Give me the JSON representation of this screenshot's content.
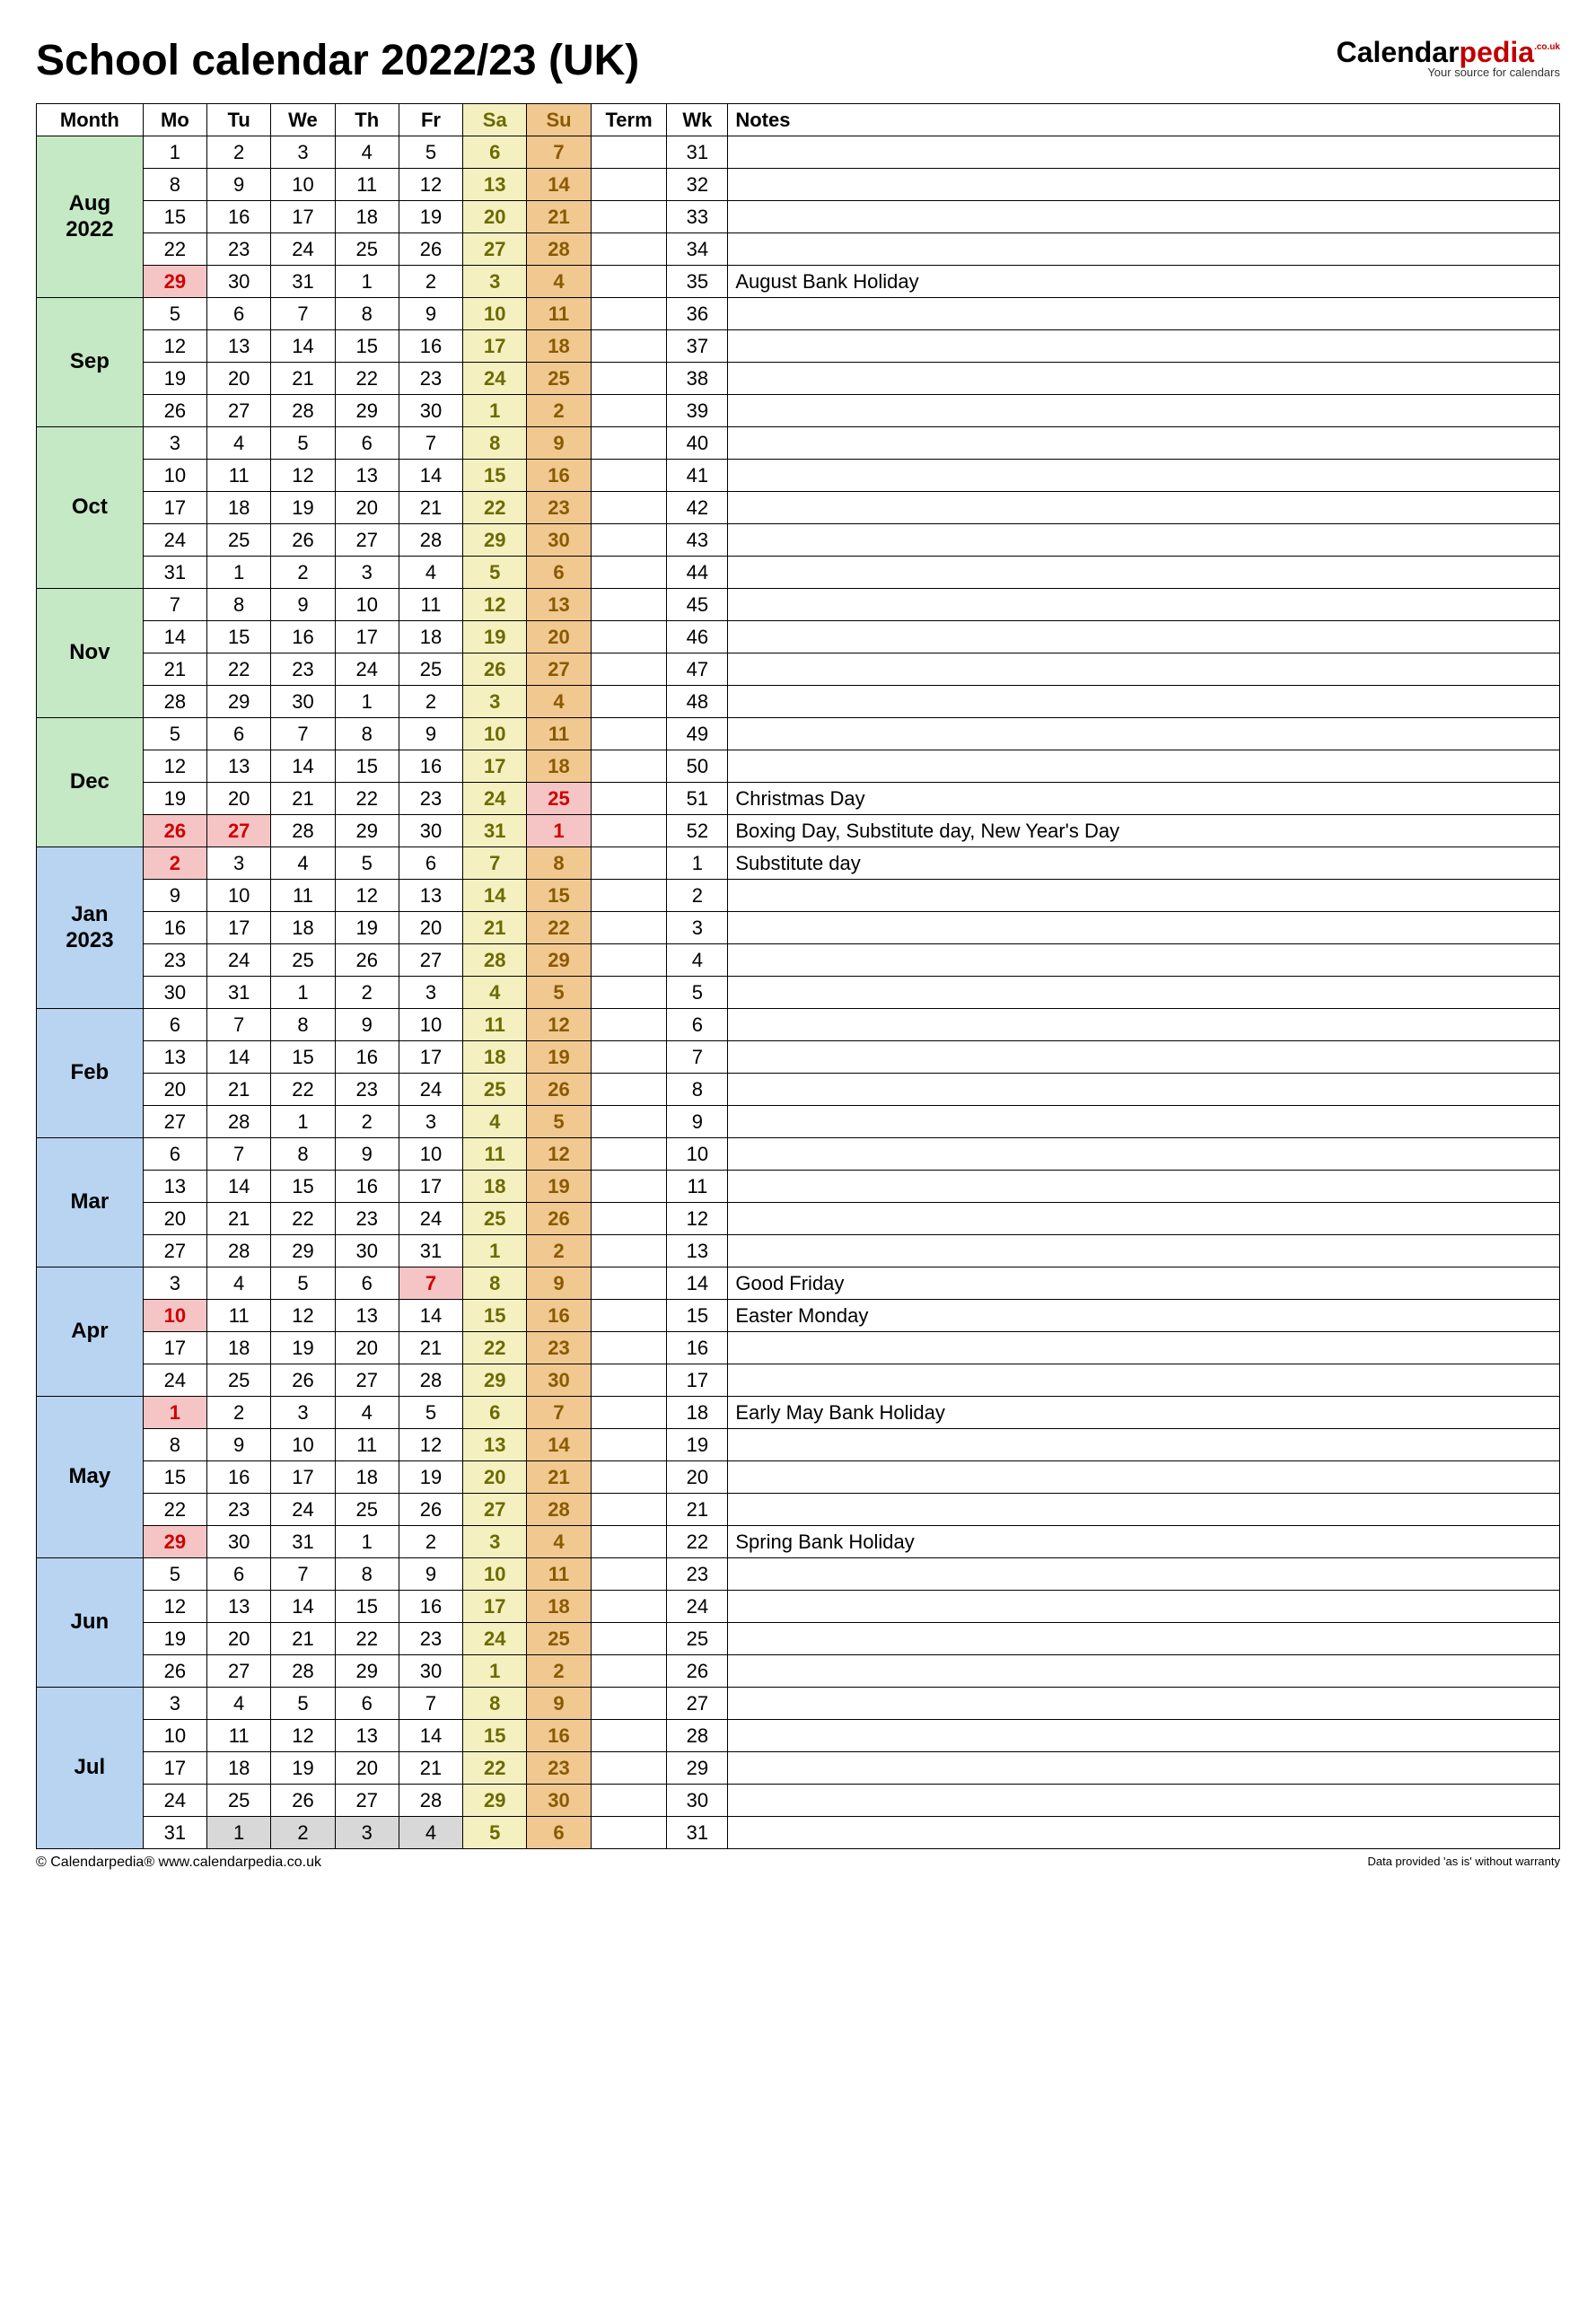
{
  "title": "School calendar 2022/23 (UK)",
  "logo": {
    "brand_a": "Calendar",
    "brand_b": "pedia",
    "suffix": ".co.uk",
    "tagline": "Your source for calendars"
  },
  "footer": {
    "left": "© Calendarpedia®    www.calendarpedia.co.uk",
    "right": "Data provided 'as is' without warranty"
  },
  "colors": {
    "month_green": "#c5e8c5",
    "month_blue": "#b8d4f0",
    "sat_bg": "#f5f0c0",
    "sun_bg": "#f0c890",
    "holiday_bg": "#f5c5c5",
    "holiday_text": "#d00000",
    "grey_bg": "#d8d8d8",
    "sat_text": "#6b6b00",
    "sun_text": "#8a5a00"
  },
  "headers": [
    "Month",
    "Mo",
    "Tu",
    "We",
    "Th",
    "Fr",
    "Sa",
    "Su",
    "Term",
    "Wk",
    "Notes"
  ],
  "months": [
    {
      "label": "Aug\n2022",
      "color": "month_green",
      "rows": [
        {
          "days": [
            1,
            2,
            3,
            4,
            5,
            6,
            7
          ],
          "wk": 31,
          "note": ""
        },
        {
          "days": [
            8,
            9,
            10,
            11,
            12,
            13,
            14
          ],
          "wk": 32,
          "note": ""
        },
        {
          "days": [
            15,
            16,
            17,
            18,
            19,
            20,
            21
          ],
          "wk": 33,
          "note": ""
        },
        {
          "days": [
            22,
            23,
            24,
            25,
            26,
            27,
            28
          ],
          "wk": 34,
          "note": ""
        },
        {
          "days": [
            29,
            30,
            31,
            1,
            2,
            3,
            4
          ],
          "wk": 35,
          "note": "August Bank Holiday",
          "hol": [
            0
          ]
        }
      ]
    },
    {
      "label": "Sep",
      "color": "month_green",
      "rows": [
        {
          "days": [
            5,
            6,
            7,
            8,
            9,
            10,
            11
          ],
          "wk": 36,
          "note": ""
        },
        {
          "days": [
            12,
            13,
            14,
            15,
            16,
            17,
            18
          ],
          "wk": 37,
          "note": ""
        },
        {
          "days": [
            19,
            20,
            21,
            22,
            23,
            24,
            25
          ],
          "wk": 38,
          "note": ""
        },
        {
          "days": [
            26,
            27,
            28,
            29,
            30,
            1,
            2
          ],
          "wk": 39,
          "note": ""
        }
      ]
    },
    {
      "label": "Oct",
      "color": "month_green",
      "rows": [
        {
          "days": [
            3,
            4,
            5,
            6,
            7,
            8,
            9
          ],
          "wk": 40,
          "note": ""
        },
        {
          "days": [
            10,
            11,
            12,
            13,
            14,
            15,
            16
          ],
          "wk": 41,
          "note": ""
        },
        {
          "days": [
            17,
            18,
            19,
            20,
            21,
            22,
            23
          ],
          "wk": 42,
          "note": ""
        },
        {
          "days": [
            24,
            25,
            26,
            27,
            28,
            29,
            30
          ],
          "wk": 43,
          "note": ""
        },
        {
          "days": [
            31,
            1,
            2,
            3,
            4,
            5,
            6
          ],
          "wk": 44,
          "note": ""
        }
      ]
    },
    {
      "label": "Nov",
      "color": "month_green",
      "rows": [
        {
          "days": [
            7,
            8,
            9,
            10,
            11,
            12,
            13
          ],
          "wk": 45,
          "note": ""
        },
        {
          "days": [
            14,
            15,
            16,
            17,
            18,
            19,
            20
          ],
          "wk": 46,
          "note": ""
        },
        {
          "days": [
            21,
            22,
            23,
            24,
            25,
            26,
            27
          ],
          "wk": 47,
          "note": ""
        },
        {
          "days": [
            28,
            29,
            30,
            1,
            2,
            3,
            4
          ],
          "wk": 48,
          "note": ""
        }
      ]
    },
    {
      "label": "Dec",
      "color": "month_green",
      "rows": [
        {
          "days": [
            5,
            6,
            7,
            8,
            9,
            10,
            11
          ],
          "wk": 49,
          "note": ""
        },
        {
          "days": [
            12,
            13,
            14,
            15,
            16,
            17,
            18
          ],
          "wk": 50,
          "note": ""
        },
        {
          "days": [
            19,
            20,
            21,
            22,
            23,
            24,
            25
          ],
          "wk": 51,
          "note": "Christmas Day",
          "hol": [
            6
          ]
        },
        {
          "days": [
            26,
            27,
            28,
            29,
            30,
            31,
            1
          ],
          "wk": 52,
          "note": "Boxing Day, Substitute day, New Year's Day",
          "hol": [
            0,
            1,
            6
          ]
        }
      ]
    },
    {
      "label": "Jan\n2023",
      "color": "month_blue",
      "rows": [
        {
          "days": [
            2,
            3,
            4,
            5,
            6,
            7,
            8
          ],
          "wk": 1,
          "note": "Substitute day",
          "hol": [
            0
          ]
        },
        {
          "days": [
            9,
            10,
            11,
            12,
            13,
            14,
            15
          ],
          "wk": 2,
          "note": ""
        },
        {
          "days": [
            16,
            17,
            18,
            19,
            20,
            21,
            22
          ],
          "wk": 3,
          "note": ""
        },
        {
          "days": [
            23,
            24,
            25,
            26,
            27,
            28,
            29
          ],
          "wk": 4,
          "note": ""
        },
        {
          "days": [
            30,
            31,
            1,
            2,
            3,
            4,
            5
          ],
          "wk": 5,
          "note": ""
        }
      ]
    },
    {
      "label": "Feb",
      "color": "month_blue",
      "rows": [
        {
          "days": [
            6,
            7,
            8,
            9,
            10,
            11,
            12
          ],
          "wk": 6,
          "note": ""
        },
        {
          "days": [
            13,
            14,
            15,
            16,
            17,
            18,
            19
          ],
          "wk": 7,
          "note": ""
        },
        {
          "days": [
            20,
            21,
            22,
            23,
            24,
            25,
            26
          ],
          "wk": 8,
          "note": ""
        },
        {
          "days": [
            27,
            28,
            1,
            2,
            3,
            4,
            5
          ],
          "wk": 9,
          "note": ""
        }
      ]
    },
    {
      "label": "Mar",
      "color": "month_blue",
      "rows": [
        {
          "days": [
            6,
            7,
            8,
            9,
            10,
            11,
            12
          ],
          "wk": 10,
          "note": ""
        },
        {
          "days": [
            13,
            14,
            15,
            16,
            17,
            18,
            19
          ],
          "wk": 11,
          "note": ""
        },
        {
          "days": [
            20,
            21,
            22,
            23,
            24,
            25,
            26
          ],
          "wk": 12,
          "note": ""
        },
        {
          "days": [
            27,
            28,
            29,
            30,
            31,
            1,
            2
          ],
          "wk": 13,
          "note": ""
        }
      ]
    },
    {
      "label": "Apr",
      "color": "month_blue",
      "rows": [
        {
          "days": [
            3,
            4,
            5,
            6,
            7,
            8,
            9
          ],
          "wk": 14,
          "note": "Good Friday",
          "hol": [
            4
          ]
        },
        {
          "days": [
            10,
            11,
            12,
            13,
            14,
            15,
            16
          ],
          "wk": 15,
          "note": "Easter Monday",
          "hol": [
            0
          ]
        },
        {
          "days": [
            17,
            18,
            19,
            20,
            21,
            22,
            23
          ],
          "wk": 16,
          "note": ""
        },
        {
          "days": [
            24,
            25,
            26,
            27,
            28,
            29,
            30
          ],
          "wk": 17,
          "note": ""
        }
      ]
    },
    {
      "label": "May",
      "color": "month_blue",
      "rows": [
        {
          "days": [
            1,
            2,
            3,
            4,
            5,
            6,
            7
          ],
          "wk": 18,
          "note": "Early May Bank Holiday",
          "hol": [
            0
          ]
        },
        {
          "days": [
            8,
            9,
            10,
            11,
            12,
            13,
            14
          ],
          "wk": 19,
          "note": ""
        },
        {
          "days": [
            15,
            16,
            17,
            18,
            19,
            20,
            21
          ],
          "wk": 20,
          "note": ""
        },
        {
          "days": [
            22,
            23,
            24,
            25,
            26,
            27,
            28
          ],
          "wk": 21,
          "note": ""
        },
        {
          "days": [
            29,
            30,
            31,
            1,
            2,
            3,
            4
          ],
          "wk": 22,
          "note": "Spring Bank Holiday",
          "hol": [
            0
          ]
        }
      ]
    },
    {
      "label": "Jun",
      "color": "month_blue",
      "rows": [
        {
          "days": [
            5,
            6,
            7,
            8,
            9,
            10,
            11
          ],
          "wk": 23,
          "note": ""
        },
        {
          "days": [
            12,
            13,
            14,
            15,
            16,
            17,
            18
          ],
          "wk": 24,
          "note": ""
        },
        {
          "days": [
            19,
            20,
            21,
            22,
            23,
            24,
            25
          ],
          "wk": 25,
          "note": ""
        },
        {
          "days": [
            26,
            27,
            28,
            29,
            30,
            1,
            2
          ],
          "wk": 26,
          "note": ""
        }
      ]
    },
    {
      "label": "Jul",
      "color": "month_blue",
      "rows": [
        {
          "days": [
            3,
            4,
            5,
            6,
            7,
            8,
            9
          ],
          "wk": 27,
          "note": ""
        },
        {
          "days": [
            10,
            11,
            12,
            13,
            14,
            15,
            16
          ],
          "wk": 28,
          "note": ""
        },
        {
          "days": [
            17,
            18,
            19,
            20,
            21,
            22,
            23
          ],
          "wk": 29,
          "note": ""
        },
        {
          "days": [
            24,
            25,
            26,
            27,
            28,
            29,
            30
          ],
          "wk": 30,
          "note": ""
        },
        {
          "days": [
            31,
            1,
            2,
            3,
            4,
            5,
            6
          ],
          "wk": 31,
          "note": "",
          "grey": [
            1,
            2,
            3,
            4
          ]
        }
      ]
    }
  ]
}
